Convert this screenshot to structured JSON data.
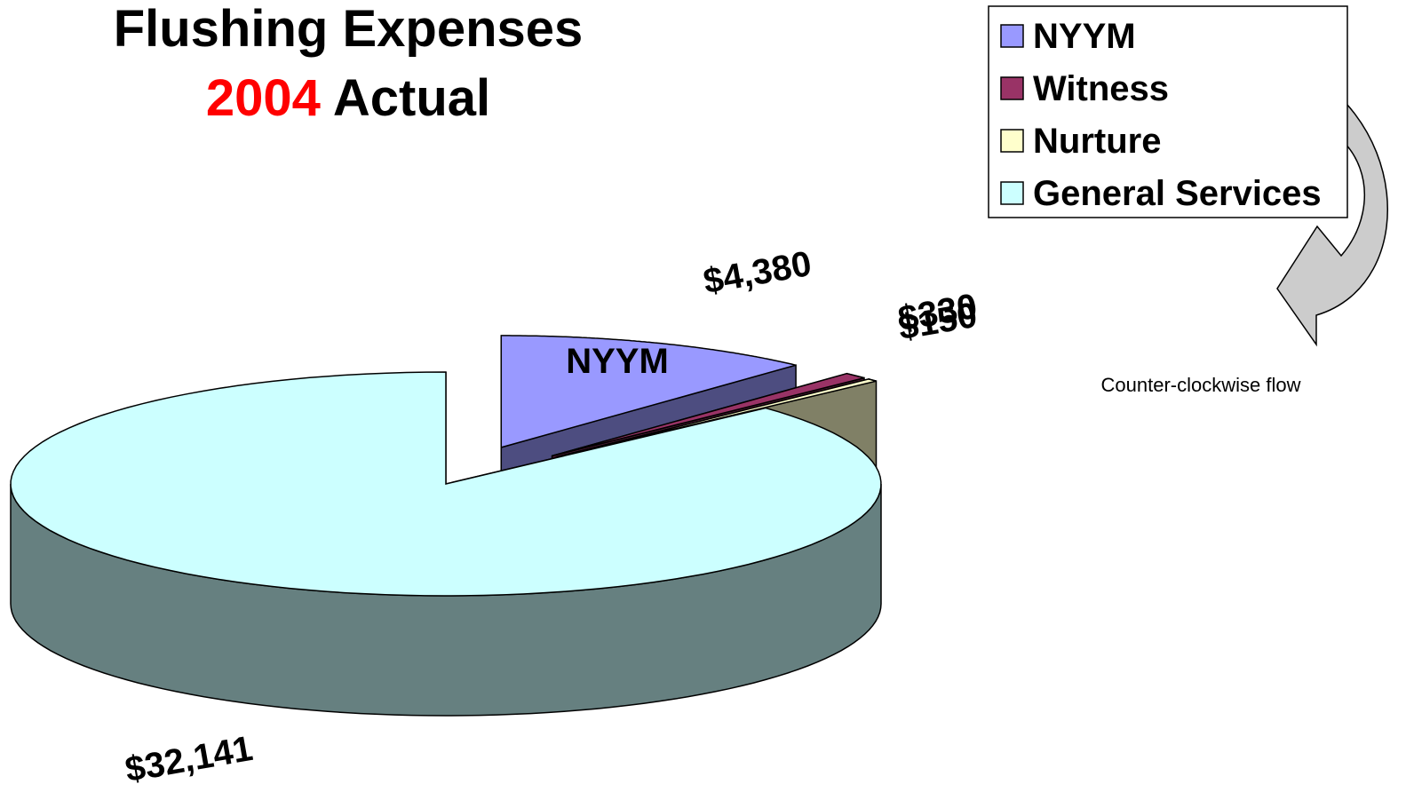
{
  "chart_data": {
    "type": "pie",
    "title": "Flushing Expenses",
    "subtitle_year": "2004",
    "subtitle": "Actual",
    "categories": [
      "NYYM",
      "Witness",
      "Nurture",
      "General Services"
    ],
    "values": [
      4380,
      330,
      150,
      32141
    ],
    "value_labels": [
      "$4,380",
      "$330",
      "$150",
      "$32,141"
    ],
    "colors": [
      "#9999ff",
      "#993366",
      "#ffffcc",
      "#ccffff"
    ],
    "side_colors": [
      "#4d4d80",
      "#4d1a33",
      "#808066",
      "#668080"
    ],
    "legend": "top-right",
    "annotation": "Counter-clockwise flow"
  }
}
